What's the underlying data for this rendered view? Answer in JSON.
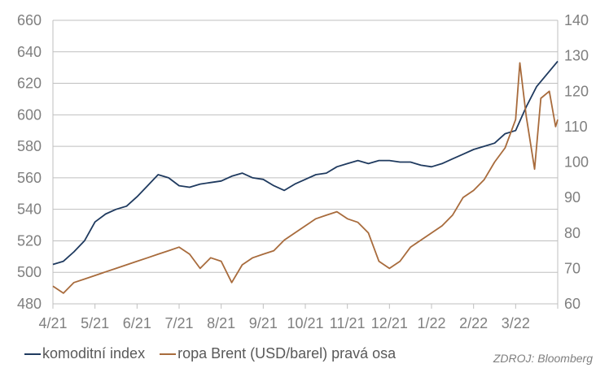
{
  "chart_data": {
    "type": "line",
    "x_labels": [
      "4/21",
      "5/21",
      "6/21",
      "7/21",
      "8/21",
      "9/21",
      "10/21",
      "11/21",
      "12/21",
      "1/22",
      "2/22",
      "3/22"
    ],
    "y_left": {
      "min": 480,
      "max": 660,
      "ticks": [
        480,
        500,
        520,
        540,
        560,
        580,
        600,
        620,
        640,
        660
      ]
    },
    "y_right": {
      "min": 60,
      "max": 140,
      "ticks": [
        60,
        70,
        80,
        90,
        100,
        110,
        120,
        130,
        140
      ]
    },
    "grid": true,
    "series": [
      {
        "name": "komoditní index",
        "axis": "left",
        "color": "#1f3a5f",
        "x": [
          0,
          0.25,
          0.5,
          0.75,
          1.0,
          1.25,
          1.5,
          1.75,
          2.0,
          2.25,
          2.5,
          2.75,
          3.0,
          3.25,
          3.5,
          3.75,
          4.0,
          4.25,
          4.5,
          4.75,
          5.0,
          5.25,
          5.5,
          5.75,
          6.0,
          6.25,
          6.5,
          6.75,
          7.0,
          7.25,
          7.5,
          7.75,
          8.0,
          8.25,
          8.5,
          8.75,
          9.0,
          9.25,
          9.5,
          9.75,
          10.0,
          10.25,
          10.5,
          10.75,
          11.0,
          11.25,
          11.5,
          11.75,
          12.0
        ],
        "values": [
          505,
          507,
          513,
          520,
          532,
          537,
          540,
          542,
          548,
          555,
          562,
          560,
          555,
          554,
          556,
          557,
          558,
          561,
          563,
          560,
          559,
          555,
          552,
          556,
          559,
          562,
          563,
          567,
          569,
          571,
          569,
          571,
          571,
          570,
          570,
          568,
          567,
          569,
          572,
          575,
          578,
          580,
          582,
          588,
          590,
          605,
          618,
          626,
          634
        ]
      },
      {
        "name": "ropa Brent (USD/barel) pravá osa",
        "axis": "right",
        "color": "#a86b3c",
        "x": [
          0,
          0.25,
          0.5,
          0.75,
          1.0,
          1.25,
          1.5,
          1.75,
          2.0,
          2.25,
          2.5,
          2.75,
          3.0,
          3.25,
          3.5,
          3.75,
          4.0,
          4.25,
          4.5,
          4.75,
          5.0,
          5.25,
          5.5,
          5.75,
          6.0,
          6.25,
          6.5,
          6.75,
          7.0,
          7.25,
          7.5,
          7.75,
          8.0,
          8.25,
          8.5,
          8.75,
          9.0,
          9.25,
          9.5,
          9.75,
          10.0,
          10.25,
          10.5,
          10.75,
          11.0,
          11.1,
          11.25,
          11.45,
          11.6,
          11.8,
          11.95,
          12.0
        ],
        "values": [
          65,
          63,
          66,
          67,
          68,
          69,
          70,
          71,
          72,
          73,
          74,
          75,
          76,
          74,
          70,
          73,
          72,
          66,
          71,
          73,
          74,
          75,
          78,
          80,
          82,
          84,
          85,
          86,
          84,
          83,
          80,
          72,
          70,
          72,
          76,
          78,
          80,
          82,
          85,
          90,
          92,
          95,
          100,
          104,
          112,
          128,
          113,
          98,
          118,
          120,
          110,
          112
        ]
      }
    ],
    "legend": [
      {
        "label": "komoditní index",
        "color": "#1f3a5f"
      },
      {
        "label": "ropa Brent (USD/barel) pravá osa",
        "color": "#a86b3c"
      }
    ],
    "source": "ZDROJ: Bloomberg"
  }
}
